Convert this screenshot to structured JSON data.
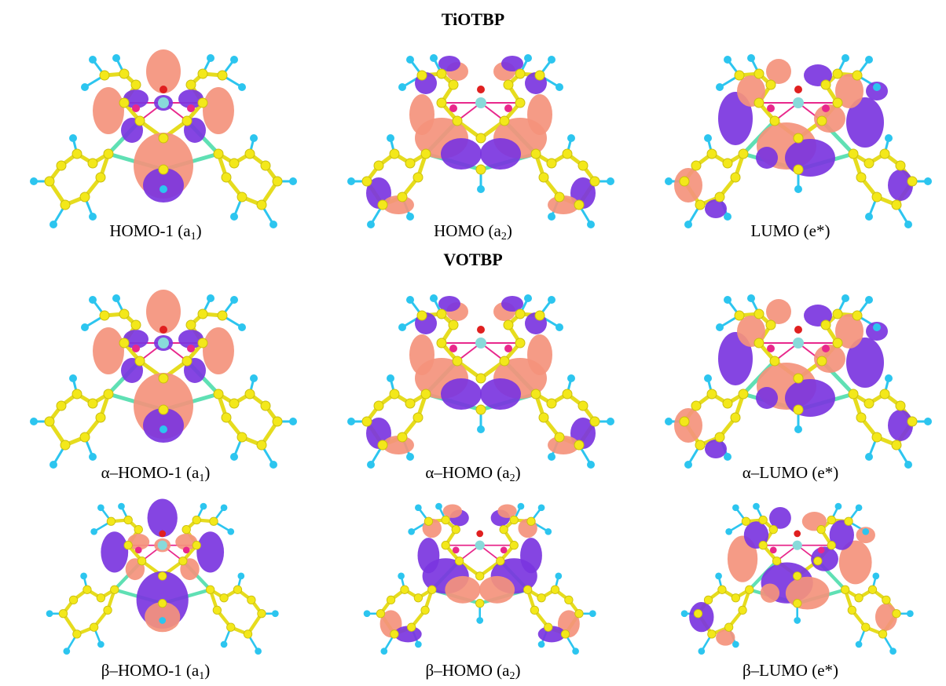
{
  "sections": [
    {
      "title": "TiOTBP",
      "panels": [
        {
          "name": "HOMO-1",
          "sym": "a",
          "sub": "1",
          "close": ")",
          "variant": "homo1",
          "flip": false
        },
        {
          "name": "HOMO",
          "sym": "a",
          "sub": "2",
          "close": ")",
          "variant": "homo",
          "flip": false
        },
        {
          "name": "LUMO",
          "sym": "e*",
          "sub": "",
          "close": ")",
          "variant": "lumo",
          "flip": false
        }
      ]
    },
    {
      "title": "VOTBP",
      "panels": [
        {
          "name": "α–HOMO-1",
          "sym": "a",
          "sub": "1",
          "close": ")",
          "variant": "homo1",
          "flip": false
        },
        {
          "name": "α–HOMO",
          "sym": "a",
          "sub": "2",
          "close": ")",
          "variant": "homo",
          "flip": false
        },
        {
          "name": "α–LUMO",
          "sym": "e*",
          "sub": "",
          "close": ")",
          "variant": "lumo",
          "flip": false
        }
      ]
    },
    {
      "title": "",
      "panels": [
        {
          "name": "β–HOMO-1",
          "sym": "a",
          "sub": "1",
          "close": ")",
          "variant": "homo1",
          "flip": true
        },
        {
          "name": "β–HOMO",
          "sym": "a",
          "sub": "2",
          "close": ")",
          "variant": "homo",
          "flip": true
        },
        {
          "name": "β–LUMO",
          "sym": "e*",
          "sub": "",
          "close": ")",
          "variant": "lumo",
          "flip": true
        }
      ]
    }
  ],
  "colors": {
    "positive_lobe": "#f4927c",
    "negative_lobe": "#7b35e0",
    "carbon": "#f3e81a",
    "hydrogen": "#2cc5ef",
    "bond_c": "#e6dc1e",
    "bond_cn": "#5fe0b4",
    "metal": "#88dada",
    "nitrogen": "#e8288c",
    "oxygen": "#e02020"
  }
}
